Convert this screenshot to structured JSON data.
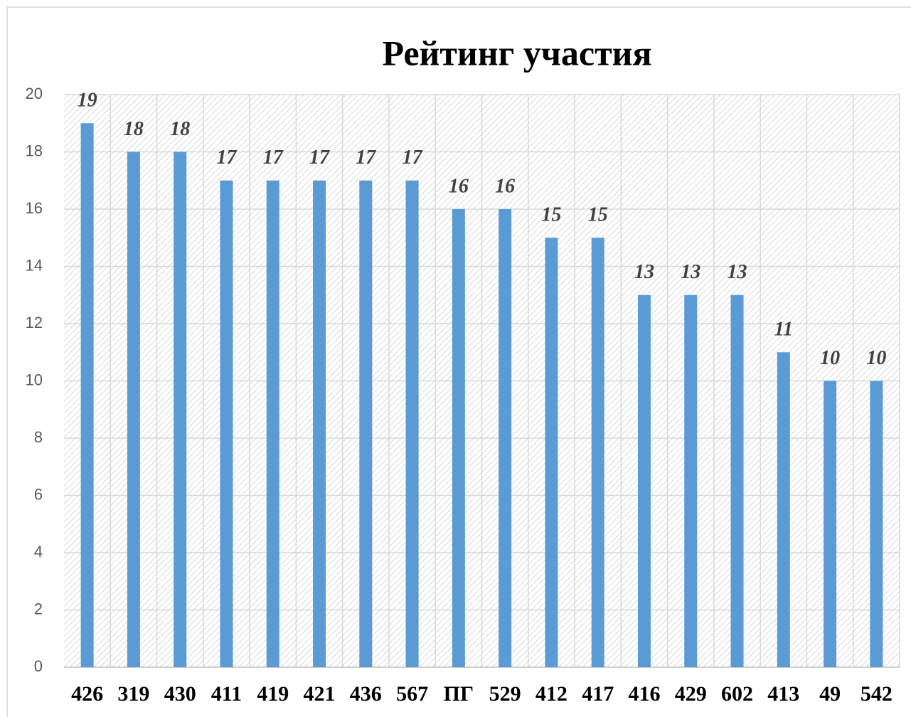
{
  "chart_data": {
    "type": "bar",
    "title": "Рейтинг участия",
    "categories": [
      "426",
      "319",
      "430",
      "411",
      "419",
      "421",
      "436",
      "567",
      "ПГ",
      "529",
      "412",
      "417",
      "416",
      "429",
      "602",
      "413",
      "49",
      "542"
    ],
    "values": [
      19,
      18,
      18,
      17,
      17,
      17,
      17,
      17,
      16,
      16,
      15,
      15,
      13,
      13,
      13,
      11,
      10,
      10
    ],
    "color": "#5b9bd5",
    "ylim": [
      0,
      20
    ],
    "yticks": [
      0,
      2,
      4,
      6,
      8,
      10,
      12,
      14,
      16,
      18,
      20
    ],
    "grid": true
  }
}
